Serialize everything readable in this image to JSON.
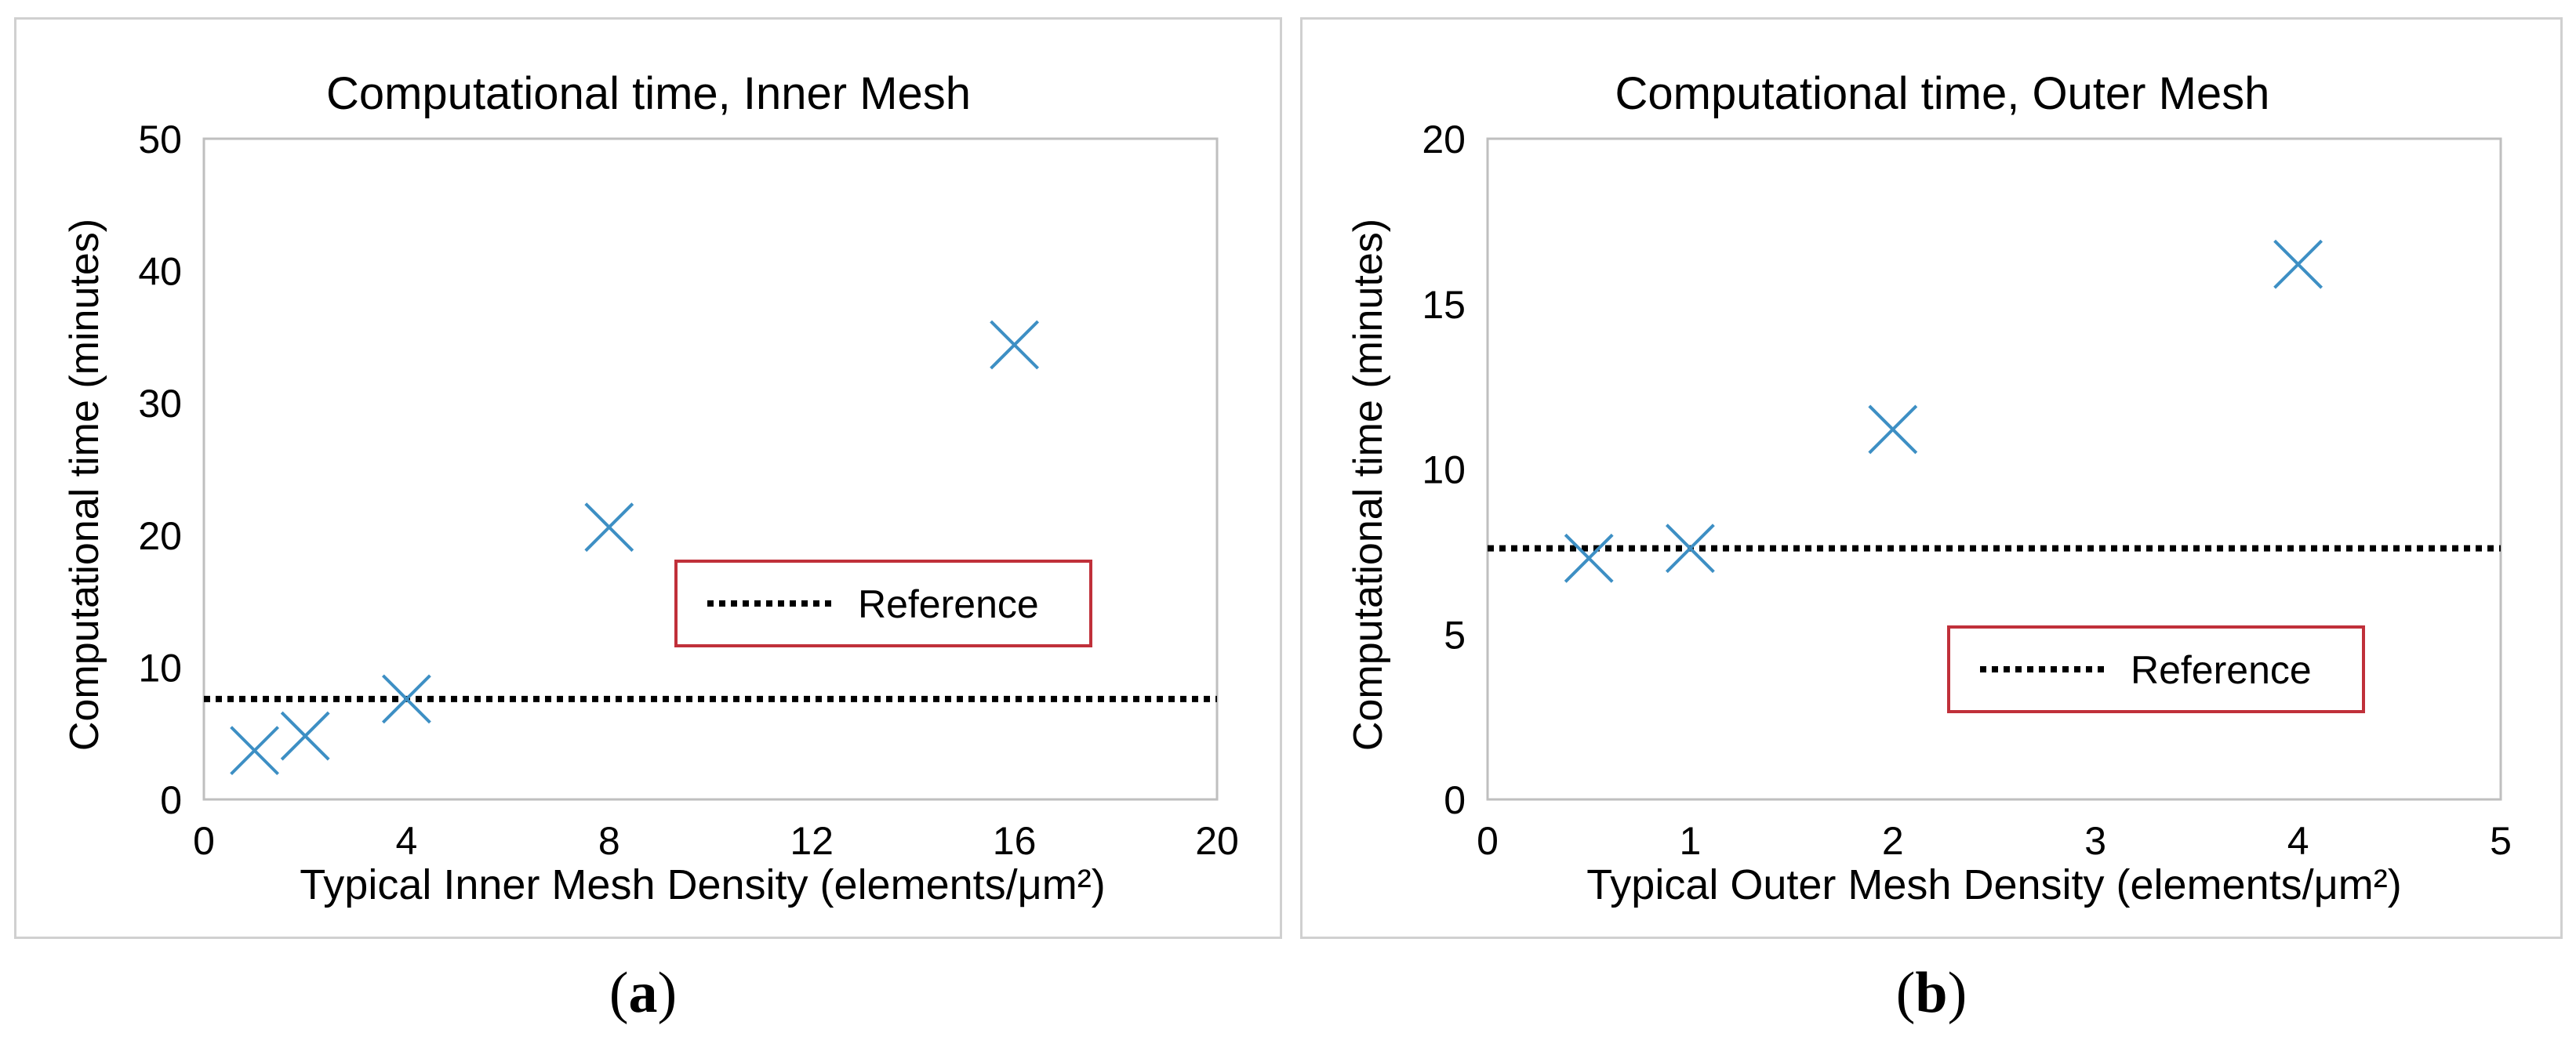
{
  "captions": {
    "a": "a",
    "b": "b"
  },
  "chart_data": [
    {
      "type": "scatter",
      "title": "Computational time, Inner Mesh",
      "xlabel": "Typical Inner Mesh Density (elements/μm²)",
      "ylabel": "Computational time (minutes)",
      "xlim": [
        0,
        20
      ],
      "ylim": [
        0,
        50
      ],
      "xticks": [
        0,
        4,
        8,
        12,
        16,
        20
      ],
      "yticks": [
        0,
        10,
        20,
        30,
        40,
        50
      ],
      "grid": false,
      "legend": "center-right",
      "marker_color": "#3d8fc4",
      "series": [
        {
          "x": [
            1,
            2,
            4,
            8,
            16
          ],
          "y": [
            3.7,
            4.8,
            7.6,
            20.6,
            34.4
          ]
        }
      ],
      "reference": {
        "name": "Reference",
        "y": 7.6
      }
    },
    {
      "type": "scatter",
      "title": "Computational time, Outer Mesh",
      "xlabel": "Typical Outer Mesh Density (elements/μm²)",
      "ylabel": "Computational time (minutes)",
      "xlim": [
        0,
        5
      ],
      "ylim": [
        0,
        20
      ],
      "xticks_labels": [
        "0",
        "1",
        "2",
        "3",
        "4",
        "5"
      ],
      "xtick_note": "axis ticks are evenly spaced categories; labels shown are 0,1,2,3,4,5 with points at 0.5,1,2,4",
      "yticks": [
        0,
        5,
        10,
        15,
        20
      ],
      "grid": false,
      "legend": "lower-right",
      "marker_color": "#3d8fc4",
      "series": [
        {
          "x": [
            0.5,
            1,
            2,
            4
          ],
          "y": [
            7.3,
            7.6,
            11.2,
            16.2
          ]
        }
      ],
      "reference": {
        "name": "Reference",
        "y": 7.6
      }
    }
  ]
}
